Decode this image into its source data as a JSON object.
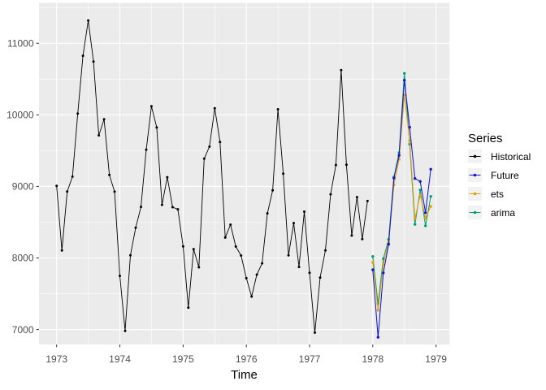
{
  "chart_data": {
    "type": "line",
    "title": "",
    "xlabel": "Time",
    "ylabel": "",
    "legend_title": "Series",
    "legend_position": "right",
    "grid": true,
    "panel_bg": "#EBEBEB",
    "grid_color": "#FFFFFF",
    "axis_text_color": "#4D4D4D",
    "tick_mark_color": "#333333",
    "legend_key_bg": "#F2F2F2",
    "xlim": [
      1972.721,
      1979.214
    ],
    "ylim": [
      6791,
      11565
    ],
    "x_major_ticks": [
      1973,
      1974,
      1975,
      1976,
      1977,
      1978,
      1979
    ],
    "x_minor_ticks": [
      1973.5,
      1974.5,
      1975.5,
      1976.5,
      1977.5,
      1978.5
    ],
    "y_major_ticks": [
      7000,
      8000,
      9000,
      10000,
      11000
    ],
    "y_minor_ticks": [
      7500,
      8500,
      9500,
      10500,
      11500
    ],
    "points_per_year": 12,
    "series": [
      {
        "name": "Historical",
        "color": "#000000",
        "start": 1973.0,
        "values": [
          9007,
          8106,
          8928,
          9137,
          10017,
          10826,
          11317,
          10744,
          9713,
          9938,
          9161,
          8927,
          7750,
          6981,
          8038,
          8422,
          8714,
          9512,
          10120,
          9823,
          8743,
          9129,
          8710,
          8680,
          8162,
          7306,
          8124,
          7870,
          9387,
          9556,
          10093,
          9620,
          8285,
          8466,
          8160,
          8034,
          7717,
          7461,
          7767,
          7925,
          8623,
          8945,
          10078,
          9179,
          8037,
          8488,
          7874,
          8647,
          7792,
          6957,
          7726,
          8106,
          8890,
          9299,
          10625,
          9302,
          8314,
          8850,
          8265,
          8796
        ]
      },
      {
        "name": "Future",
        "color": "#1515D6",
        "start": 1978.0,
        "values": [
          7836,
          6892,
          7791,
          8192,
          9115,
          9434,
          10484,
          9827,
          9110,
          9070,
          8633,
          9240
        ]
      },
      {
        "name": "ets",
        "color": "#E69F00",
        "start": 1978.0,
        "values": [
          7940,
          7270,
          7910,
          8220,
          9020,
          9380,
          10280,
          9640,
          8550,
          8880,
          8560,
          8720
        ]
      },
      {
        "name": "arima",
        "color": "#009E73",
        "start": 1978.0,
        "values": [
          8020,
          7360,
          7990,
          8260,
          9130,
          9470,
          10580,
          9590,
          8470,
          8950,
          8450,
          8860
        ]
      }
    ]
  }
}
